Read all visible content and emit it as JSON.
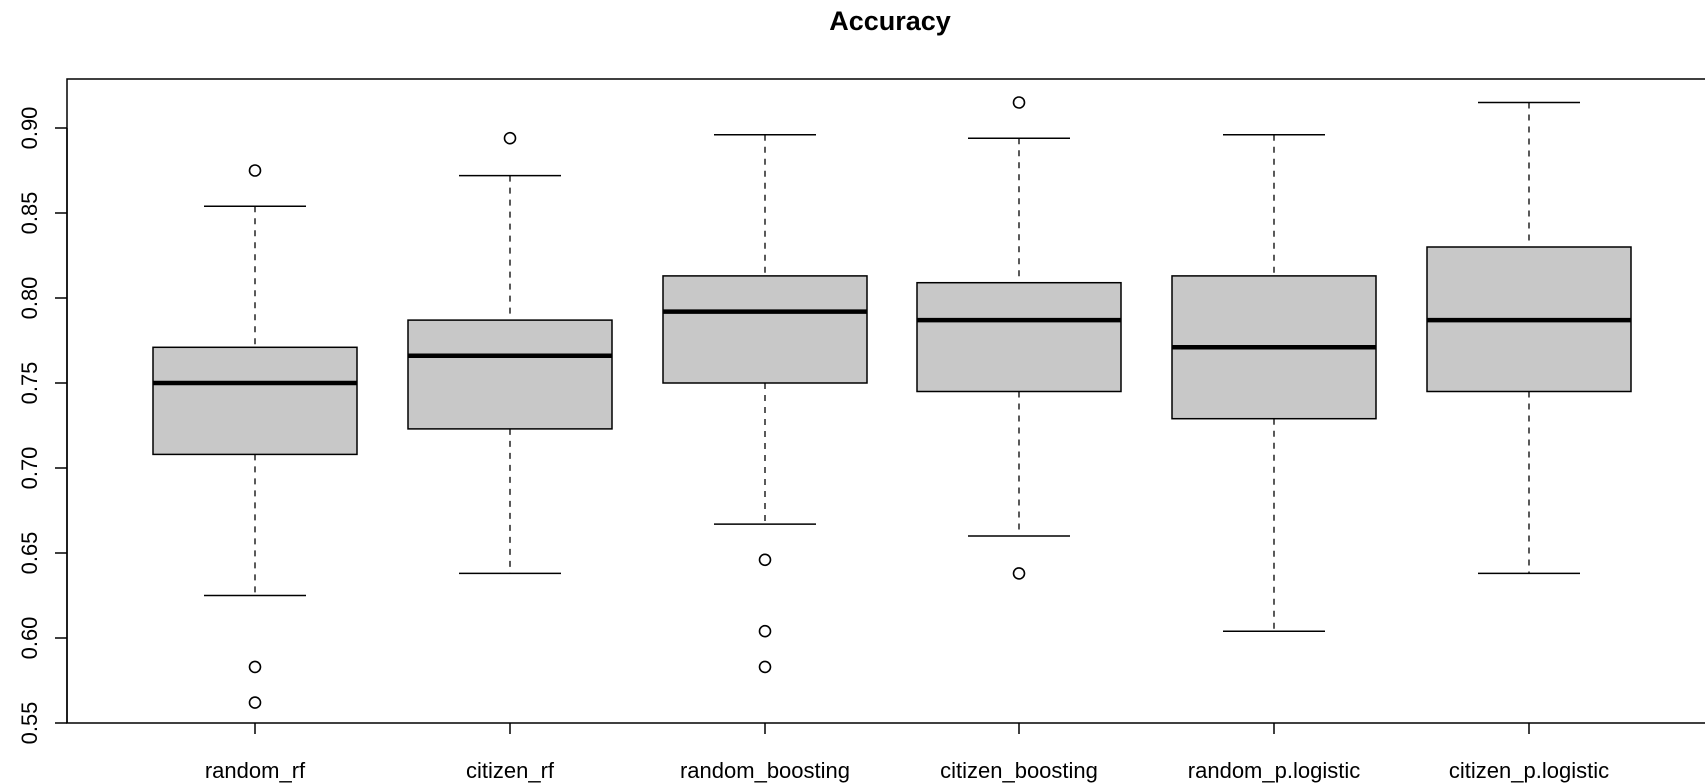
{
  "chart_data": {
    "type": "box",
    "title": "Accuracy",
    "xlabel": "",
    "ylabel": "",
    "ylim": [
      0.55,
      0.92
    ],
    "yticks": [
      "0.55",
      "0.60",
      "0.65",
      "0.70",
      "0.75",
      "0.80",
      "0.85",
      "0.90"
    ],
    "grid": false,
    "legend": "none",
    "colors": {
      "box_fill": "#c8c8c8",
      "stroke": "#000000"
    },
    "categories": [
      "random_rf",
      "citizen_rf",
      "random_boosting",
      "citizen_boosting",
      "random_p.logistic",
      "citizen_p.logistic"
    ],
    "boxes": [
      {
        "name": "random_rf",
        "whisker_low": 0.625,
        "q1": 0.708,
        "median": 0.75,
        "q3": 0.771,
        "whisker_high": 0.854,
        "outliers": [
          0.875,
          0.583,
          0.562
        ]
      },
      {
        "name": "citizen_rf",
        "whisker_low": 0.638,
        "q1": 0.723,
        "median": 0.766,
        "q3": 0.787,
        "whisker_high": 0.872,
        "outliers": [
          0.894
        ]
      },
      {
        "name": "random_boosting",
        "whisker_low": 0.667,
        "q1": 0.75,
        "median": 0.792,
        "q3": 0.813,
        "whisker_high": 0.896,
        "outliers": [
          0.646,
          0.604,
          0.583
        ]
      },
      {
        "name": "citizen_boosting",
        "whisker_low": 0.66,
        "q1": 0.745,
        "median": 0.787,
        "q3": 0.809,
        "whisker_high": 0.894,
        "outliers": [
          0.915,
          0.638
        ]
      },
      {
        "name": "random_p.logistic",
        "whisker_low": 0.604,
        "q1": 0.729,
        "median": 0.771,
        "q3": 0.813,
        "whisker_high": 0.896,
        "outliers": []
      },
      {
        "name": "citizen_p.logistic",
        "whisker_low": 0.638,
        "q1": 0.745,
        "median": 0.787,
        "q3": 0.83,
        "whisker_high": 0.915,
        "outliers": []
      }
    ]
  }
}
